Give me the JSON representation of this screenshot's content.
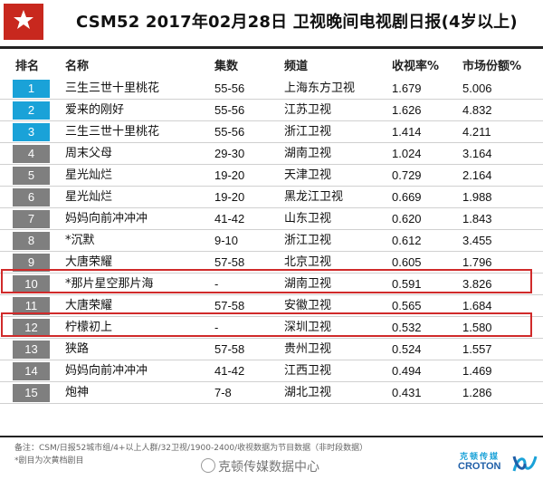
{
  "header": {
    "title": "CSM52   2017年02月28日   卫视晚间电视剧日报(4岁以上)",
    "logo_icon": "star-icon",
    "logo_color": "#c8281e"
  },
  "columns": {
    "rank": "排名",
    "name": "名称",
    "episodes": "集数",
    "channel": "频道",
    "rating": "收视率%",
    "share": "市场份额%"
  },
  "rows": [
    {
      "rank": "1",
      "name": "三生三世十里桃花",
      "episodes": "55-56",
      "channel": "上海东方卫视",
      "rating": "1.679",
      "share": "5.006"
    },
    {
      "rank": "2",
      "name": "爱来的刚好",
      "episodes": "55-56",
      "channel": "江苏卫视",
      "rating": "1.626",
      "share": "4.832"
    },
    {
      "rank": "3",
      "name": "三生三世十里桃花",
      "episodes": "55-56",
      "channel": "浙江卫视",
      "rating": "1.414",
      "share": "4.211"
    },
    {
      "rank": "4",
      "name": "周末父母",
      "episodes": "29-30",
      "channel": "湖南卫视",
      "rating": "1.024",
      "share": "3.164"
    },
    {
      "rank": "5",
      "name": "星光灿烂",
      "episodes": "19-20",
      "channel": "天津卫视",
      "rating": "0.729",
      "share": "2.164"
    },
    {
      "rank": "6",
      "name": "星光灿烂",
      "episodes": "19-20",
      "channel": "黑龙江卫视",
      "rating": "0.669",
      "share": "1.988"
    },
    {
      "rank": "7",
      "name": "妈妈向前冲冲冲",
      "episodes": "41-42",
      "channel": "山东卫视",
      "rating": "0.620",
      "share": "1.843"
    },
    {
      "rank": "8",
      "name": "*沉默",
      "episodes": "9-10",
      "channel": "浙江卫视",
      "rating": "0.612",
      "share": "3.455"
    },
    {
      "rank": "9",
      "name": "大唐荣耀",
      "episodes": "57-58",
      "channel": "北京卫视",
      "rating": "0.605",
      "share": "1.796"
    },
    {
      "rank": "10",
      "name": "*那片星空那片海",
      "episodes": "-",
      "channel": "湖南卫视",
      "rating": "0.591",
      "share": "3.826"
    },
    {
      "rank": "11",
      "name": "大唐荣耀",
      "episodes": "57-58",
      "channel": "安徽卫视",
      "rating": "0.565",
      "share": "1.684"
    },
    {
      "rank": "12",
      "name": "柠檬初上",
      "episodes": "-",
      "channel": "深圳卫视",
      "rating": "0.532",
      "share": "1.580"
    },
    {
      "rank": "13",
      "name": "狭路",
      "episodes": "57-58",
      "channel": "贵州卫视",
      "rating": "0.524",
      "share": "1.557"
    },
    {
      "rank": "14",
      "name": "妈妈向前冲冲冲",
      "episodes": "41-42",
      "channel": "江西卫视",
      "rating": "0.494",
      "share": "1.469"
    },
    {
      "rank": "15",
      "name": "炮神",
      "episodes": "7-8",
      "channel": "湖北卫视",
      "rating": "0.431",
      "share": "1.286"
    }
  ],
  "notes": {
    "line1": "备注：CSM/日报52城市组/4+以上人群/32卫视/1900-2400/收视数据为节目数据（非时段数据）",
    "line2": "*剧目为次黄档剧目"
  },
  "watermark": "克顿传媒数据中心",
  "brand": {
    "cn": "克顿传媒",
    "en": "CROTON"
  },
  "colors": {
    "top_rank": "#1aa2d8",
    "other_rank": "#7f7f7f",
    "highlight": "#d02a2a"
  }
}
